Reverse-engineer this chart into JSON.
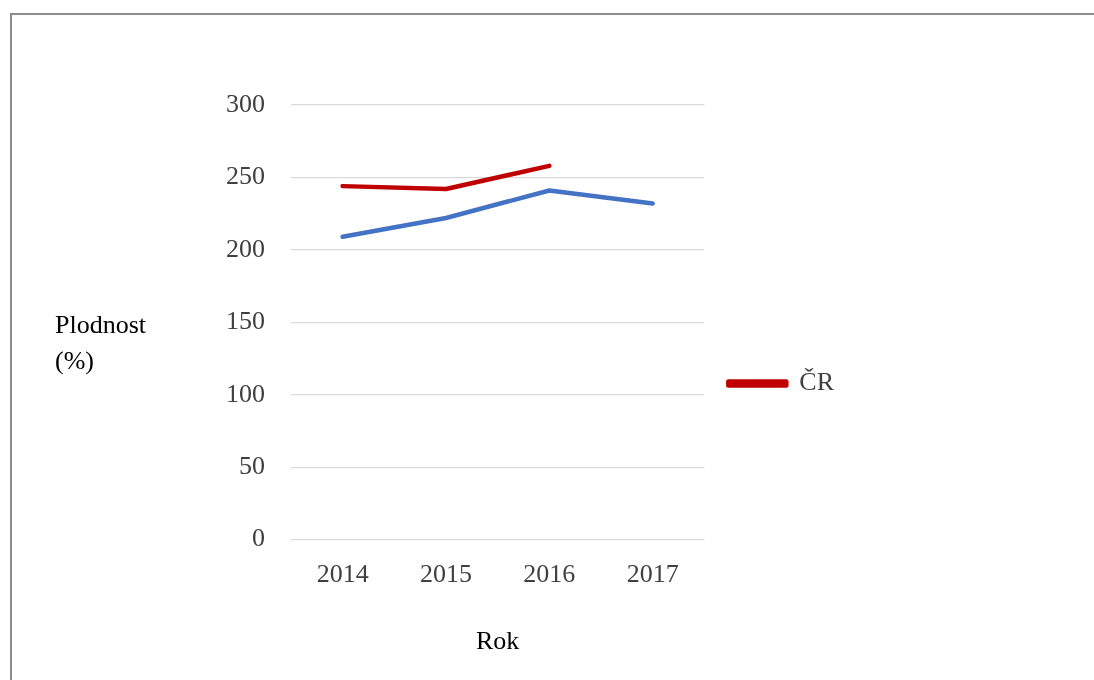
{
  "chart_data": {
    "type": "line",
    "categories": [
      "2014",
      "2015",
      "2016",
      "2017"
    ],
    "series": [
      {
        "color": "#4472c4",
        "values": [
          209,
          222,
          241,
          232
        ]
      },
      {
        "name": "ČR",
        "color": "#c00000",
        "values": [
          244,
          242,
          258,
          null
        ]
      }
    ],
    "ylabel": "Plodnost (%)",
    "xlabel": "Rok",
    "ylim": [
      0,
      300
    ],
    "yticks": [
      0,
      50,
      100,
      150,
      200,
      250,
      300
    ],
    "grid": "y",
    "legend": "right",
    "marker": "none",
    "line_style": "solid"
  }
}
